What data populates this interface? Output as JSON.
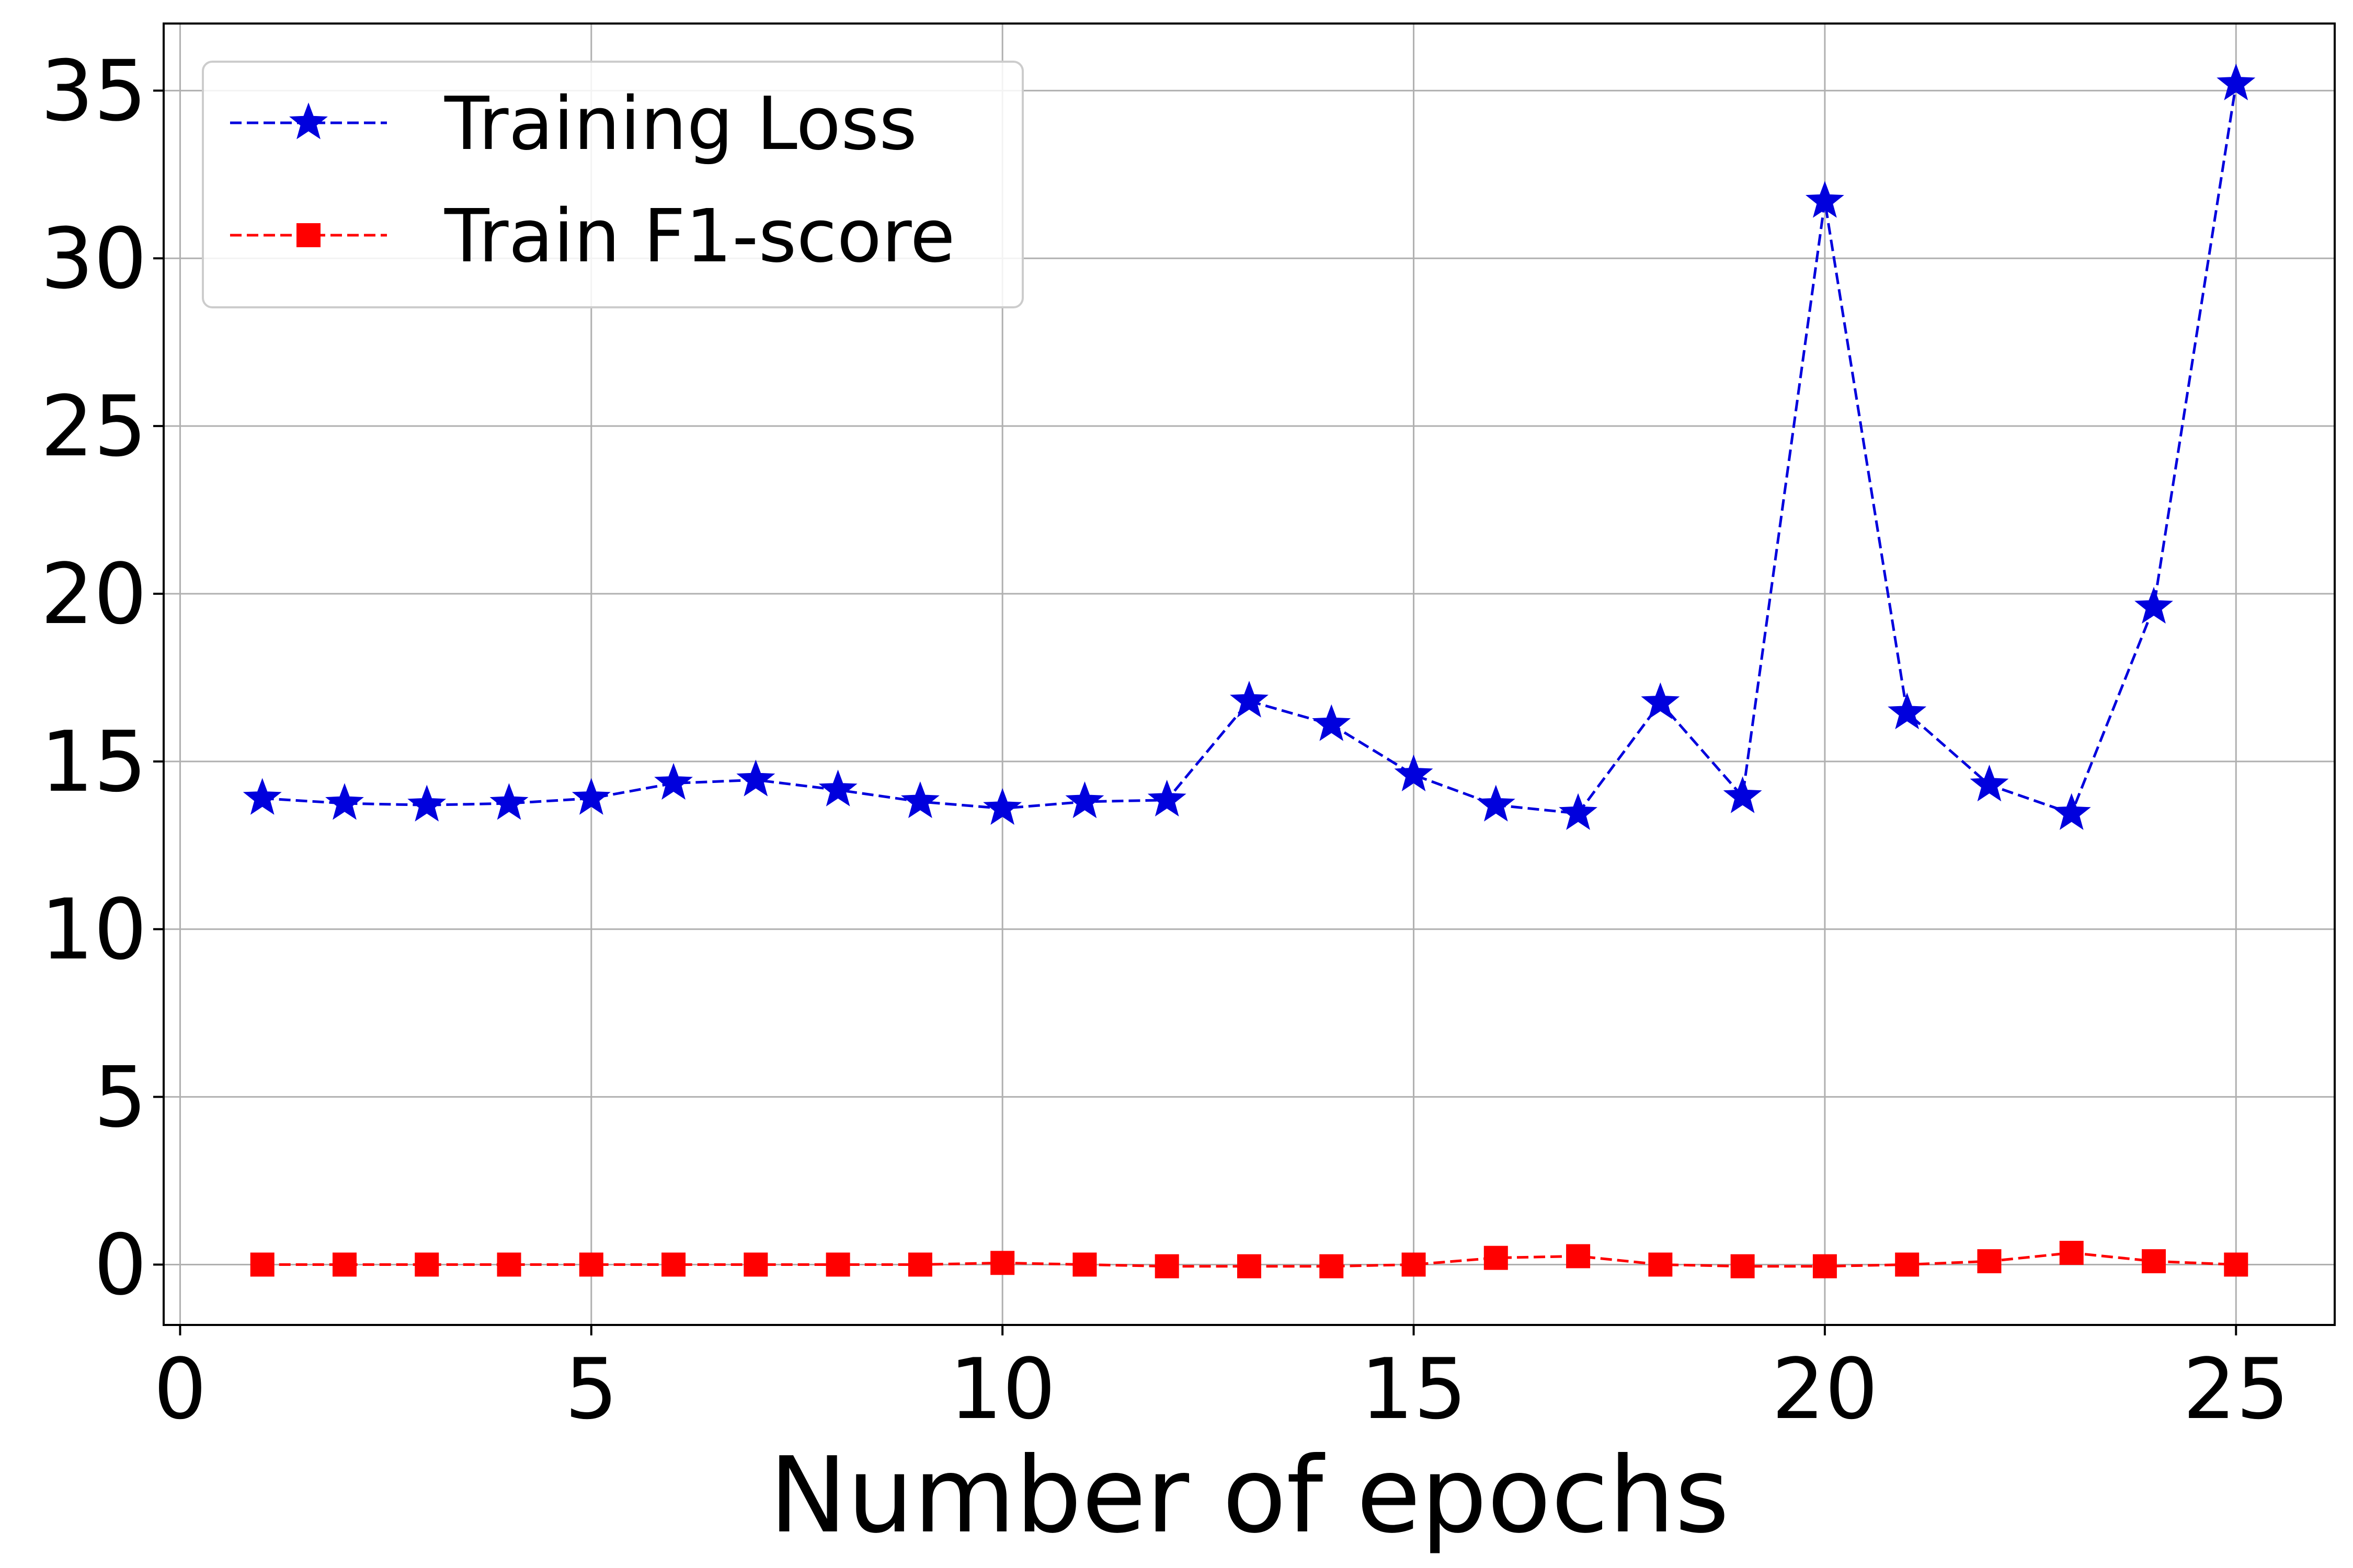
{
  "chart_data": {
    "type": "line",
    "title": "",
    "xlabel": "Number of epochs",
    "ylabel": "",
    "xlim": [
      -0.2,
      26.2
    ],
    "ylim": [
      -1.8,
      37.0
    ],
    "xticks": [
      0,
      5,
      10,
      15,
      20,
      25
    ],
    "yticks": [
      0,
      5,
      10,
      15,
      20,
      25,
      30,
      35
    ],
    "grid": true,
    "legend_position": "top-left",
    "x": [
      1,
      2,
      3,
      4,
      5,
      6,
      7,
      8,
      9,
      10,
      11,
      12,
      13,
      14,
      15,
      16,
      17,
      18,
      19,
      20,
      21,
      22,
      23,
      24,
      25
    ],
    "series": [
      {
        "name": "Training Loss",
        "color": "#0000dd",
        "marker": "star",
        "line_style": "dashed",
        "values": [
          13.9,
          13.75,
          13.7,
          13.75,
          13.9,
          14.35,
          14.45,
          14.15,
          13.8,
          13.6,
          13.8,
          13.85,
          16.8,
          16.1,
          14.6,
          13.7,
          13.45,
          16.75,
          13.95,
          31.7,
          16.45,
          14.3,
          13.45,
          19.6,
          35.2
        ]
      },
      {
        "name": "Train F1-score",
        "color": "#ff0000",
        "marker": "square",
        "line_style": "dashed",
        "values": [
          0.0,
          0.0,
          0.0,
          0.0,
          0.0,
          0.0,
          0.0,
          0.0,
          0.0,
          0.05,
          0.0,
          -0.05,
          -0.05,
          -0.05,
          0.0,
          0.2,
          0.25,
          0.0,
          -0.05,
          -0.05,
          0.0,
          0.1,
          0.35,
          0.1,
          0.0
        ]
      }
    ]
  }
}
